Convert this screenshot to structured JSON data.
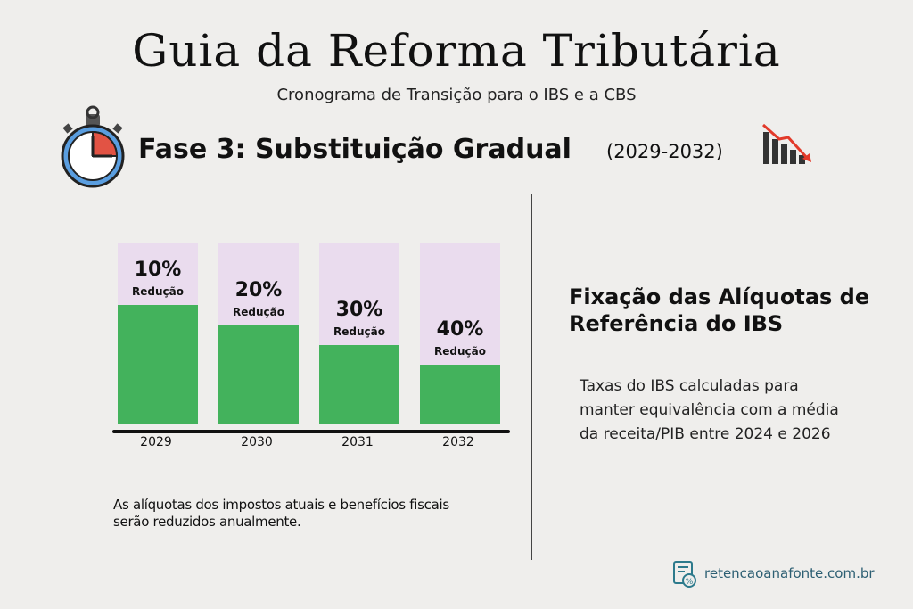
{
  "header": {
    "title": "Guia da Reforma Tributária",
    "subtitle": "Cronograma de Transição para o IBS e a CBS"
  },
  "phase": {
    "title": "Fase 3: Substituição Gradual",
    "period": "(2029-2032)"
  },
  "chart_data": {
    "type": "bar",
    "categories": [
      "2029",
      "2030",
      "2031",
      "2032"
    ],
    "values": [
      10,
      20,
      30,
      40
    ],
    "value_labels": [
      "10%",
      "20%",
      "30%",
      "40%"
    ],
    "bar_label": "Redução",
    "title": "",
    "xlabel": "",
    "ylabel": "",
    "ylim": [
      0,
      100
    ],
    "colors": {
      "remaining": "#43b25c",
      "reduction": "#eadcee"
    }
  },
  "note": "As alíquotas dos impostos atuais e benefícios fiscais serão reduzidos anualmente.",
  "right": {
    "title": "Fixação das Alíquotas de Referência do IBS",
    "text": "Taxas do IBS calculadas para manter equivalência com a média da receita/PIB entre 2024 e 2026"
  },
  "footer": {
    "site": "retencaoanafonte.com.br"
  }
}
